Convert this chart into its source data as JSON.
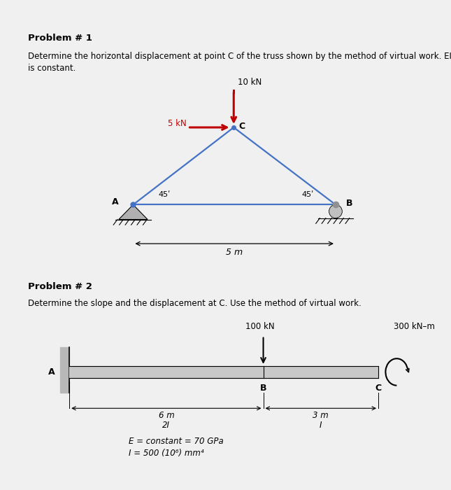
{
  "bg_color": "#ffffff",
  "border_color": "#cccccc",
  "problem1_title": "Problem # 1",
  "problem1_text_line1": "Determine the horizontal displacement at point C of the truss shown by the method of virtual work. EI",
  "problem1_text_line2": "is constant.",
  "problem2_title": "Problem # 2",
  "problem2_text": "Determine the slope and the displacement at C. Use the method of virtual work.",
  "truss_color": "#4472c4",
  "force_color": "#c00000",
  "angle_label": "45",
  "truss_label_5m": "5 m",
  "load_10kN": "10 kN",
  "load_5kN": "5 kN",
  "label_A": "A",
  "label_B": "B",
  "label_C": "C",
  "load_100kN": "100 kN",
  "load_300kNm": "300 kN–m",
  "beam_A_label": "A",
  "beam_B_label": "B",
  "beam_C_label": "C",
  "dim_6m": "6 m",
  "dim_2I": "2I",
  "dim_3m": "3 m",
  "dim_I": "I",
  "eq1": "E = constant = 70 GPa",
  "eq2": "I = 500 (10⁶) mm⁴"
}
